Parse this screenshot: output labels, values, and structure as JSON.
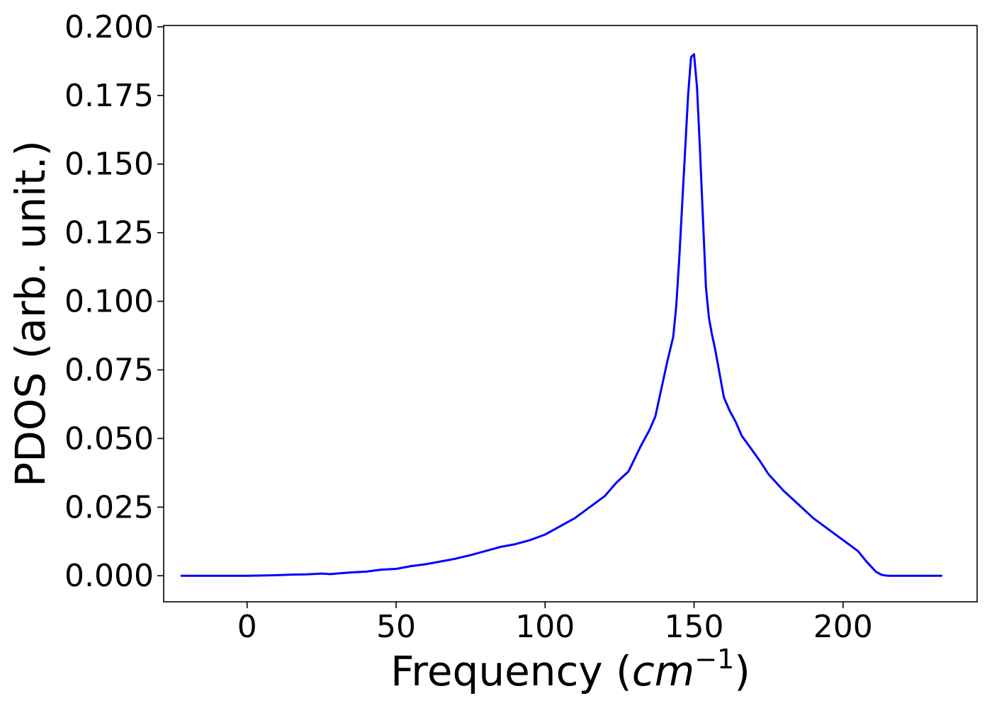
{
  "chart_data": {
    "type": "line",
    "title": "",
    "xlabel": "Frequency (cm−1)",
    "xlabel_parts": {
      "prefix": "Frequency (",
      "unit": "cm",
      "exponent": "−1",
      "suffix": ")"
    },
    "ylabel": "PDOS (arb. unit.)",
    "xlim": [
      -28,
      245
    ],
    "ylim": [
      -0.0095,
      0.2005
    ],
    "xticks": [
      0,
      50,
      100,
      150,
      200
    ],
    "xtick_labels": [
      "0",
      "50",
      "100",
      "150",
      "200"
    ],
    "yticks": [
      0.0,
      0.025,
      0.05,
      0.075,
      0.1,
      0.125,
      0.15,
      0.175,
      0.2
    ],
    "ytick_labels": [
      "0.000",
      "0.025",
      "0.050",
      "0.075",
      "0.100",
      "0.125",
      "0.150",
      "0.175",
      "0.200"
    ],
    "grid": false,
    "legend": "none",
    "series": [
      {
        "color": "#0000ff",
        "x": [
          -22,
          0,
          10,
          15,
          20,
          25,
          28,
          30,
          35,
          40,
          45,
          50,
          55,
          60,
          65,
          70,
          75,
          80,
          85,
          90,
          95,
          100,
          105,
          110,
          115,
          120,
          124,
          128,
          132,
          135,
          137,
          139,
          141,
          143,
          144,
          145,
          146,
          147,
          148,
          149,
          150,
          151,
          152,
          153,
          154,
          155,
          156,
          157,
          158,
          160,
          162,
          164,
          166,
          168,
          170,
          172,
          175,
          180,
          185,
          190,
          195,
          200,
          205,
          208,
          211,
          213,
          215,
          218,
          225,
          233
        ],
        "y": [
          0.0,
          0.0,
          0.0002,
          0.0004,
          0.0005,
          0.0008,
          0.0006,
          0.0008,
          0.0012,
          0.0015,
          0.0022,
          0.0025,
          0.0035,
          0.0042,
          0.0052,
          0.0062,
          0.0075,
          0.009,
          0.0105,
          0.0115,
          0.013,
          0.015,
          0.018,
          0.021,
          0.025,
          0.029,
          0.034,
          0.038,
          0.047,
          0.053,
          0.058,
          0.068,
          0.078,
          0.087,
          0.098,
          0.115,
          0.135,
          0.155,
          0.175,
          0.189,
          0.19,
          0.178,
          0.155,
          0.13,
          0.105,
          0.094,
          0.088,
          0.083,
          0.077,
          0.065,
          0.06,
          0.056,
          0.051,
          0.048,
          0.045,
          0.042,
          0.037,
          0.031,
          0.026,
          0.021,
          0.017,
          0.013,
          0.009,
          0.005,
          0.0015,
          0.0003,
          0.0,
          0.0,
          0.0,
          0.0
        ]
      }
    ]
  }
}
